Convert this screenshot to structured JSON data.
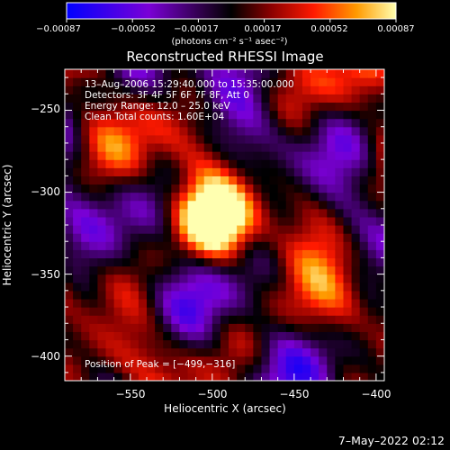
{
  "chart_data": {
    "type": "heatmap",
    "title": "Reconstructed RHESSI Image",
    "xlabel": "Heliocentric X (arcsec)",
    "ylabel": "Heliocentric Y (arcsec)",
    "xlim": [
      -590,
      -395
    ],
    "ylim": [
      -415,
      -225
    ],
    "x_ticks": [
      -550,
      -500,
      -450,
      -400
    ],
    "y_ticks": [
      -250,
      -300,
      -350,
      -400
    ],
    "x_tick_labels": [
      "−550",
      "−500",
      "−450",
      "−400"
    ],
    "y_tick_labels": [
      "−250",
      "−300",
      "−350",
      "−400"
    ],
    "peak": {
      "x": -499,
      "y": -316
    },
    "colorbar": {
      "range": [
        -0.00087,
        0.00087
      ],
      "tick_labels": [
        "−0.00087",
        "−0.00052",
        "−0.00017",
        "0.00017",
        "0.00052",
        "0.00087"
      ],
      "unit": "(photons cm⁻² s⁻¹ asec⁻²)",
      "colors": [
        "#0000ff",
        "#7a00d6",
        "#2a0040",
        "#000000",
        "#8a0000",
        "#ff1a00",
        "#ff9a00",
        "#ffffb0"
      ]
    },
    "info_lines": [
      "13–Aug–2006 15:29:40.000 to 15:35:00.000",
      "Detectors: 3F 4F 5F 6F 7F 8F, Att 0",
      "Energy Range: 12.0 – 25.0 keV",
      "Clean     Total counts: 1.60E+04"
    ],
    "peak_label": "Position of Peak = [−499,−316]",
    "grid": false
  },
  "footer_date": "7–May–2022 02:12"
}
